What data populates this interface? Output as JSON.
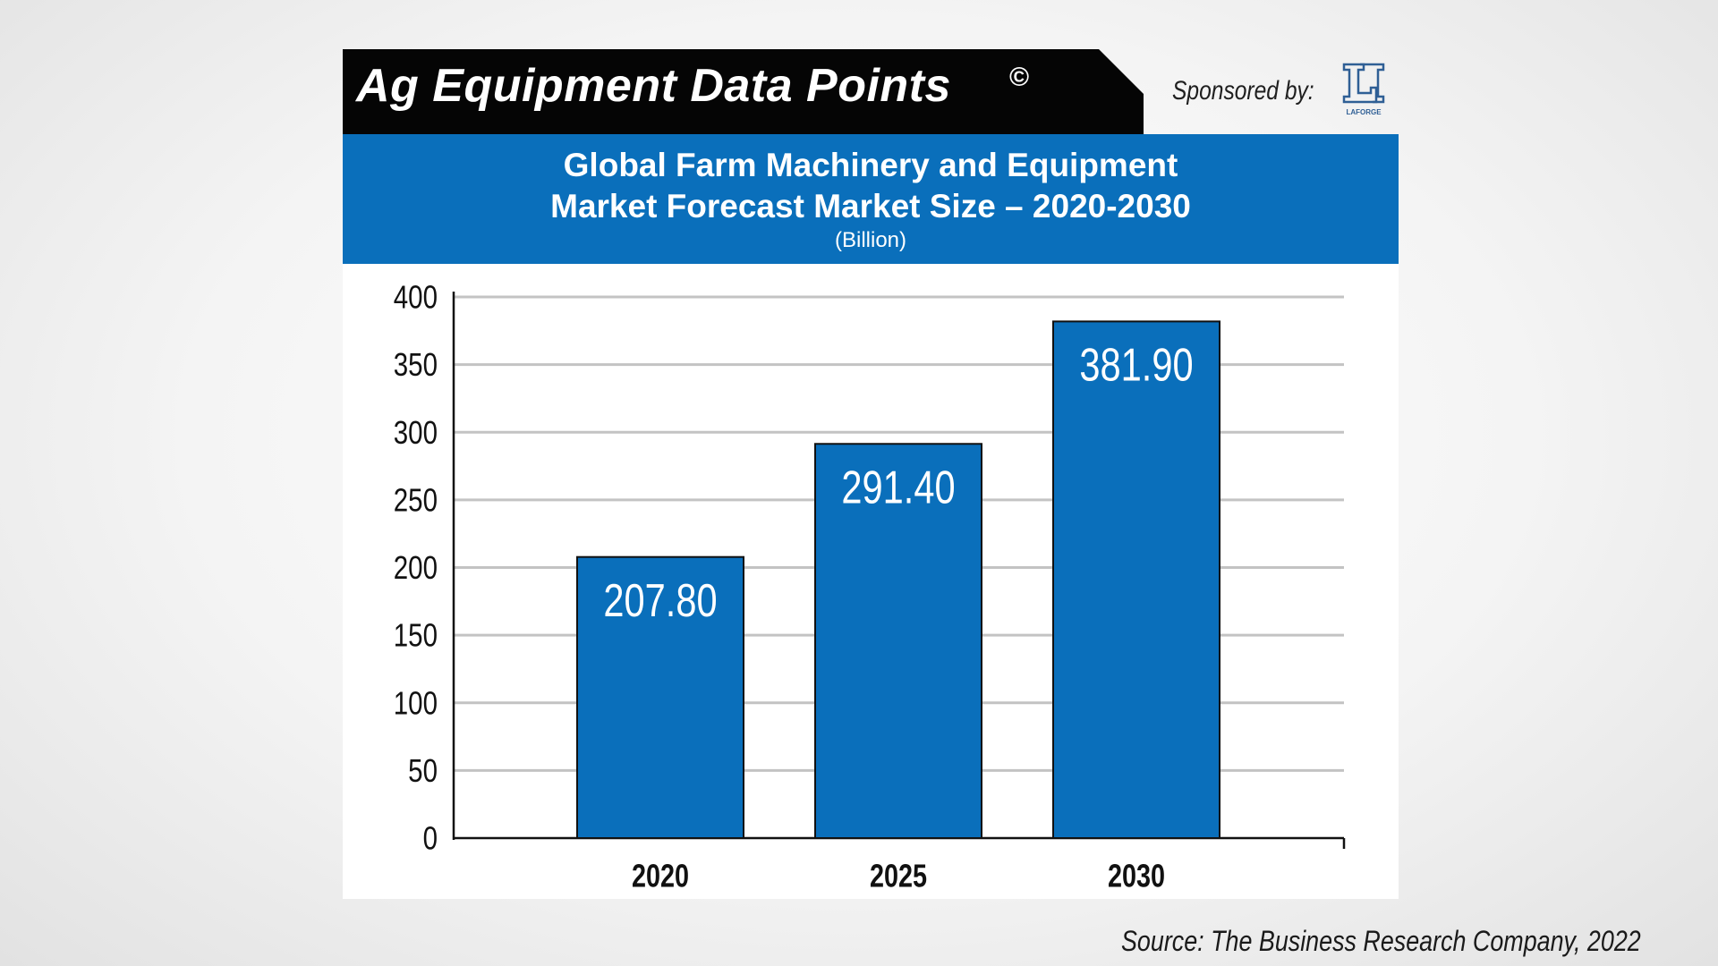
{
  "header": {
    "title": "Ag Equipment Data Points",
    "copyright_mark": "©",
    "sponsor_label": "Sponsored by:",
    "sponsor_logo_text": "LAFORGE"
  },
  "colors": {
    "bar": "#0a6fbb",
    "band": "#0a6fbb",
    "header": "#050505"
  },
  "chart_data": {
    "type": "bar",
    "title": "Global Farm Machinery and Equipment Market Forecast Market Size – 2020-2030",
    "title_lines": [
      "Global Farm Machinery and Equipment",
      "Market Forecast Market Size – 2020-2030"
    ],
    "subtitle": "(Billion)",
    "categories": [
      "2020",
      "2025",
      "2030"
    ],
    "values": [
      207.8,
      291.4,
      381.9
    ],
    "value_labels": [
      "207.80",
      "291.40",
      "381.90"
    ],
    "ylim": [
      0,
      400
    ],
    "yticks": [
      0,
      50,
      100,
      150,
      200,
      250,
      300,
      350,
      400
    ],
    "grid": true,
    "legend": "none"
  },
  "source": "Source: The Business Research Company, 2022"
}
